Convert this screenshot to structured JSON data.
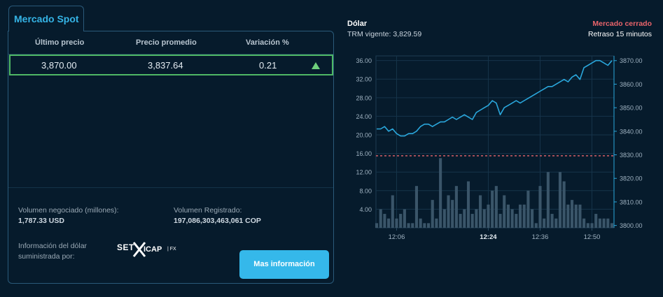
{
  "tab_label": "Mercado Spot",
  "table": {
    "headers": [
      "Último precio",
      "Precio promedio",
      "Variación %"
    ],
    "row": {
      "ultimo": "3,870.00",
      "promedio": "3,837.64",
      "variacion": "0.21",
      "trend": "up"
    }
  },
  "volumen_negociado": {
    "label": "Volumen negociado (millones):",
    "value": "1,787.33 USD"
  },
  "volumen_registrado": {
    "label": "Volumen Registrado:",
    "value": "197,086,303,463,061 COP"
  },
  "info_label": "Información del dólar suministrada por:",
  "provider_logo": {
    "text_left": "SET",
    "text_right": "ICAP",
    "suffix": "| FX"
  },
  "button_label": "Mas información",
  "chart_header": {
    "title": "Dólar",
    "trm": "TRM vigente: 3,829.59",
    "status": "Mercado cerrado",
    "delay": "Retraso 15 minutos"
  },
  "colors": {
    "background": "#061b2c",
    "accent": "#35b4e6",
    "price_line": "#2aa7dc",
    "trm_line": "#e9646b",
    "volume_bars": "#3a5569",
    "highlight_row": "#4fb865",
    "status_closed": "#e9646b"
  },
  "chart_data": {
    "type": "line",
    "title": "Dólar",
    "x_tick_labels": [
      "12:06",
      "12:24",
      "12:36",
      "12:50"
    ],
    "x_tick_positions": [
      5,
      28,
      41,
      54
    ],
    "bold_tick": "12:24",
    "y_left": {
      "label": "",
      "ticks": [
        "4.00",
        "8.00",
        "12.00",
        "16.00",
        "20.00",
        "24.00",
        "28.00",
        "32.00",
        "36.00"
      ],
      "range": [
        0,
        37
      ]
    },
    "y_right": {
      "label": "",
      "ticks": [
        "3800.00",
        "3810.00",
        "3820.00",
        "3830.00",
        "3840.00",
        "3850.00",
        "3860.00",
        "3870.00"
      ],
      "range": [
        3799,
        3872
      ]
    },
    "reference_line": {
      "value": 3829.59
    },
    "grid": true,
    "series": [
      {
        "type": "line",
        "axis": "right",
        "values": [
          3841,
          3841,
          3842,
          3840,
          3841,
          3839,
          3838,
          3838,
          3839,
          3839,
          3840,
          3842,
          3843,
          3843,
          3842,
          3843,
          3844,
          3844,
          3845,
          3846,
          3845,
          3846,
          3847,
          3846,
          3845,
          3848,
          3849,
          3850,
          3851,
          3853,
          3852,
          3847,
          3850,
          3851,
          3852,
          3853,
          3852,
          3853,
          3854,
          3855,
          3856,
          3857,
          3858,
          3859,
          3859,
          3860,
          3861,
          3862,
          3861,
          3863,
          3864,
          3862,
          3867,
          3868,
          3869,
          3870,
          3870,
          3869,
          3868,
          3870
        ],
        "y_right_pixel_hint": "line"
      },
      {
        "type": "bar",
        "axis": "left",
        "values": [
          1,
          4,
          3,
          2,
          7,
          2,
          3,
          4,
          1,
          1,
          9,
          2,
          1,
          1,
          6,
          2,
          15,
          4,
          7,
          6,
          9,
          3,
          4,
          10,
          3,
          4,
          7,
          4,
          5,
          8,
          9,
          3,
          7,
          5,
          4,
          3,
          5,
          5,
          8,
          4,
          1,
          9,
          2,
          12,
          3,
          2,
          12,
          10,
          5,
          6,
          5,
          5,
          2,
          1,
          1,
          3,
          2,
          2,
          2,
          1
        ]
      }
    ]
  }
}
